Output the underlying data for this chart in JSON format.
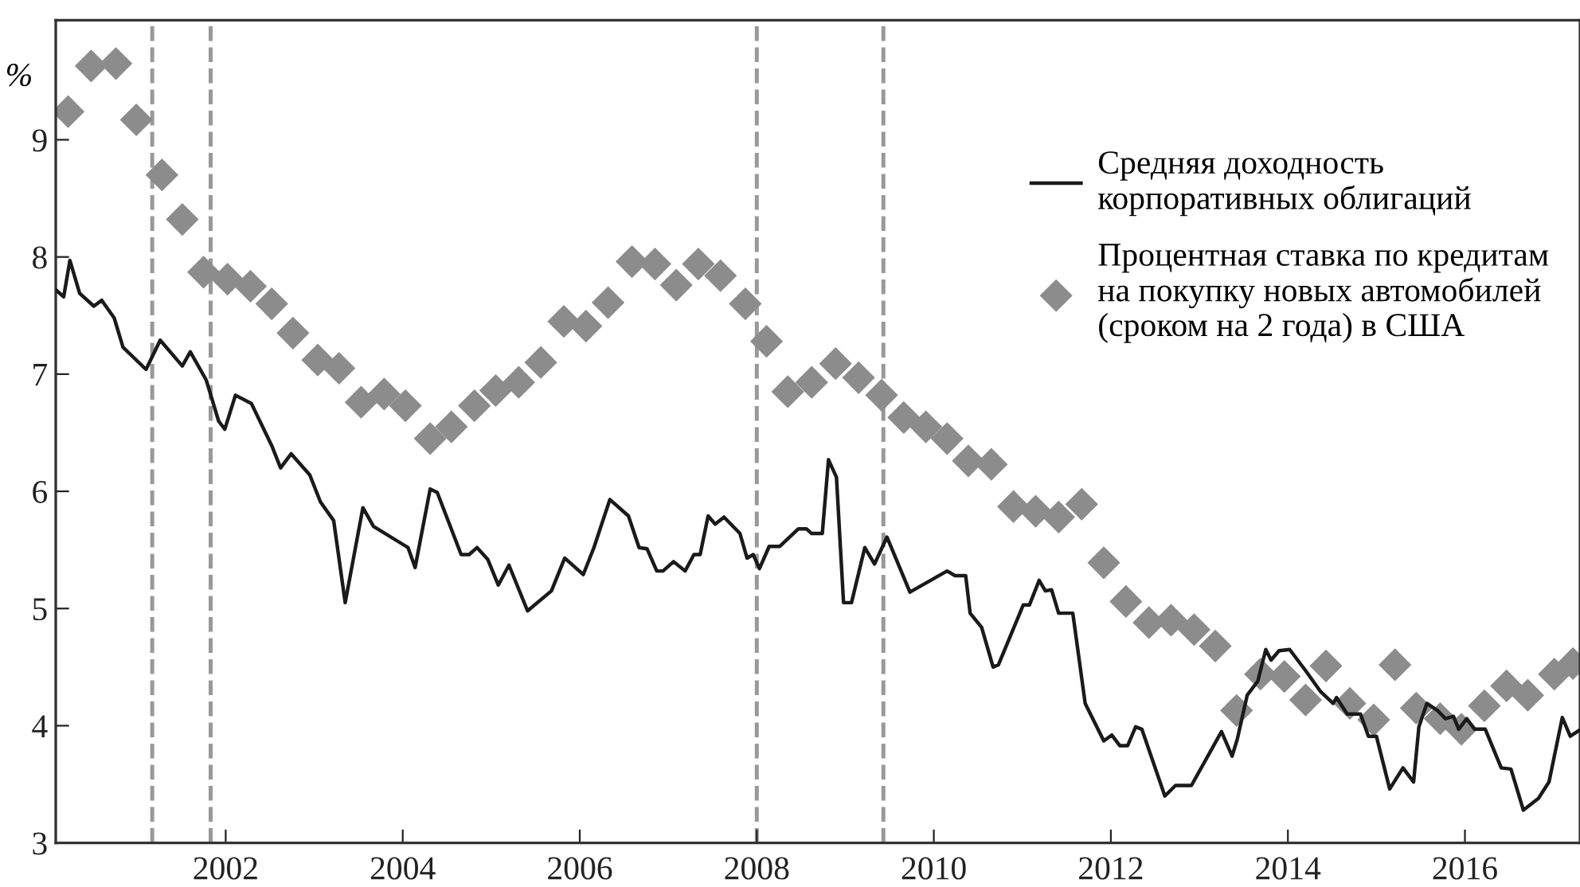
{
  "chart_data": {
    "type": "line",
    "ylabel": "%",
    "xlim": [
      2000.08,
      2017.3
    ],
    "ylim": [
      3,
      10.02
    ],
    "xticks": [
      2002,
      2004,
      2006,
      2008,
      2010,
      2012,
      2014,
      2016
    ],
    "yticks": [
      3,
      4,
      5,
      6,
      7,
      8,
      9
    ],
    "grid": false,
    "legend": "top right",
    "ref_lines": [
      {
        "axis": "x",
        "value": 2001.17,
        "label": null,
        "color": "#999999",
        "line_style": "dashed"
      },
      {
        "axis": "x",
        "value": 2001.83,
        "label": null,
        "color": "#999999",
        "line_style": "dashed"
      },
      {
        "axis": "x",
        "value": 2008.0,
        "label": null,
        "color": "#999999",
        "line_style": "dashed"
      },
      {
        "axis": "x",
        "value": 2009.43,
        "label": null,
        "color": "#999999",
        "line_style": "dashed"
      }
    ],
    "series": [
      {
        "name": "Средняя доходность\nкорпоративных облигаций",
        "color": "#1a1a1a",
        "marker": "none",
        "line_style": "solid",
        "x": [
          2000.08,
          2000.17,
          2000.24,
          2000.35,
          2000.51,
          2000.6,
          2000.74,
          2000.84,
          2001.1,
          2001.26,
          2001.51,
          2001.6,
          2001.78,
          2001.92,
          2001.99,
          2002.11,
          2002.29,
          2002.52,
          2002.62,
          2002.74,
          2002.95,
          2003.07,
          2003.22,
          2003.35,
          2003.55,
          2003.67,
          2004.06,
          2004.14,
          2004.31,
          2004.39,
          2004.66,
          2004.75,
          2004.84,
          2004.96,
          2005.08,
          2005.2,
          2005.41,
          2005.68,
          2005.83,
          2006.04,
          2006.16,
          2006.34,
          2006.55,
          2006.67,
          2006.76,
          2006.87,
          2006.94,
          2007.06,
          2007.19,
          2007.29,
          2007.36,
          2007.45,
          2007.53,
          2007.63,
          2007.81,
          2007.89,
          2007.96,
          2008.03,
          2008.14,
          2008.26,
          2008.47,
          2008.56,
          2008.62,
          2008.74,
          2008.81,
          2008.9,
          2008.98,
          2009.07,
          2009.22,
          2009.33,
          2009.47,
          2009.73,
          2010.15,
          2010.24,
          2010.36,
          2010.41,
          2010.54,
          2010.67,
          2010.73,
          2011.01,
          2011.08,
          2011.19,
          2011.26,
          2011.33,
          2011.41,
          2011.57,
          2011.71,
          2011.92,
          2012.01,
          2012.1,
          2012.19,
          2012.28,
          2012.35,
          2012.61,
          2012.73,
          2012.91,
          2013.25,
          2013.37,
          2013.43,
          2013.54,
          2013.66,
          2013.75,
          2013.81,
          2013.9,
          2014.02,
          2014.2,
          2014.37,
          2014.51,
          2014.55,
          2014.67,
          2014.82,
          2014.91,
          2015.0,
          2015.15,
          2015.3,
          2015.42,
          2015.48,
          2015.57,
          2015.69,
          2015.78,
          2015.87,
          2015.93,
          2016.02,
          2016.11,
          2016.23,
          2016.41,
          2016.52,
          2016.66,
          2016.83,
          2016.95,
          2017.1,
          2017.19,
          2017.29
        ],
        "values": [
          7.72,
          7.66,
          7.97,
          7.69,
          7.58,
          7.63,
          7.48,
          7.23,
          7.04,
          7.29,
          7.07,
          7.19,
          6.95,
          6.6,
          6.53,
          6.82,
          6.75,
          6.39,
          6.2,
          6.32,
          6.14,
          5.91,
          5.75,
          5.05,
          5.86,
          5.7,
          5.52,
          5.35,
          6.02,
          5.99,
          5.46,
          5.46,
          5.52,
          5.42,
          5.2,
          5.37,
          4.98,
          5.15,
          5.43,
          5.29,
          5.52,
          5.93,
          5.79,
          5.52,
          5.51,
          5.32,
          5.32,
          5.4,
          5.32,
          5.46,
          5.46,
          5.79,
          5.72,
          5.78,
          5.64,
          5.43,
          5.46,
          5.34,
          5.53,
          5.53,
          5.68,
          5.68,
          5.64,
          5.64,
          6.27,
          6.12,
          5.05,
          5.05,
          5.52,
          5.38,
          5.61,
          5.14,
          5.32,
          5.28,
          5.28,
          4.96,
          4.84,
          4.5,
          4.52,
          5.03,
          5.03,
          5.24,
          5.15,
          5.16,
          4.96,
          4.96,
          4.19,
          3.87,
          3.92,
          3.83,
          3.83,
          3.99,
          3.97,
          3.4,
          3.49,
          3.49,
          3.95,
          3.74,
          3.89,
          4.26,
          4.38,
          4.65,
          4.56,
          4.64,
          4.65,
          4.47,
          4.29,
          4.19,
          4.24,
          4.1,
          4.1,
          3.91,
          3.91,
          3.46,
          3.64,
          3.52,
          3.99,
          4.19,
          4.13,
          4.06,
          4.08,
          3.97,
          4.06,
          3.97,
          3.97,
          3.64,
          3.63,
          3.28,
          3.38,
          3.52,
          4.07,
          3.91,
          3.96
        ]
      },
      {
        "name": "Процентная ставка по кредитам\nна покупку новых автомобилей\n(сроком на 2 года) в США",
        "type": "scatter",
        "color": "#8c8c8c",
        "marker": "diamond",
        "x": [
          2000.22,
          2000.48,
          2000.76,
          2000.99,
          2001.28,
          2001.51,
          2001.75,
          2002.02,
          2002.28,
          2002.52,
          2002.76,
          2003.04,
          2003.28,
          2003.53,
          2003.79,
          2004.03,
          2004.31,
          2004.55,
          2004.81,
          2005.05,
          2005.31,
          2005.56,
          2005.82,
          2006.07,
          2006.32,
          2006.59,
          2006.85,
          2007.09,
          2007.34,
          2007.59,
          2007.87,
          2008.11,
          2008.35,
          2008.62,
          2008.89,
          2009.15,
          2009.41,
          2009.66,
          2009.91,
          2010.15,
          2010.39,
          2010.65,
          2010.9,
          2011.15,
          2011.41,
          2011.67,
          2011.92,
          2012.17,
          2012.43,
          2012.68,
          2012.94,
          2013.18,
          2013.42,
          2013.69,
          2013.96,
          2014.2,
          2014.43,
          2014.7,
          2014.97,
          2015.21,
          2015.45,
          2015.72,
          2015.96,
          2016.22,
          2016.47,
          2016.71,
          2017.01,
          2017.22
        ],
        "values": [
          9.24,
          9.63,
          9.65,
          9.17,
          8.7,
          8.32,
          7.87,
          7.81,
          7.75,
          7.6,
          7.35,
          7.12,
          7.05,
          6.76,
          6.83,
          6.73,
          6.45,
          6.55,
          6.73,
          6.86,
          6.93,
          7.1,
          7.45,
          7.41,
          7.61,
          7.96,
          7.94,
          7.76,
          7.94,
          7.84,
          7.6,
          7.28,
          6.85,
          6.93,
          7.09,
          6.97,
          6.82,
          6.63,
          6.55,
          6.45,
          6.26,
          6.23,
          5.87,
          5.83,
          5.78,
          5.89,
          5.39,
          5.06,
          4.88,
          4.9,
          4.82,
          4.68,
          4.13,
          4.44,
          4.42,
          4.22,
          4.51,
          4.19,
          4.05,
          4.52,
          4.15,
          4.06,
          3.97,
          4.17,
          4.34,
          4.26,
          4.44,
          4.53
        ]
      }
    ]
  }
}
